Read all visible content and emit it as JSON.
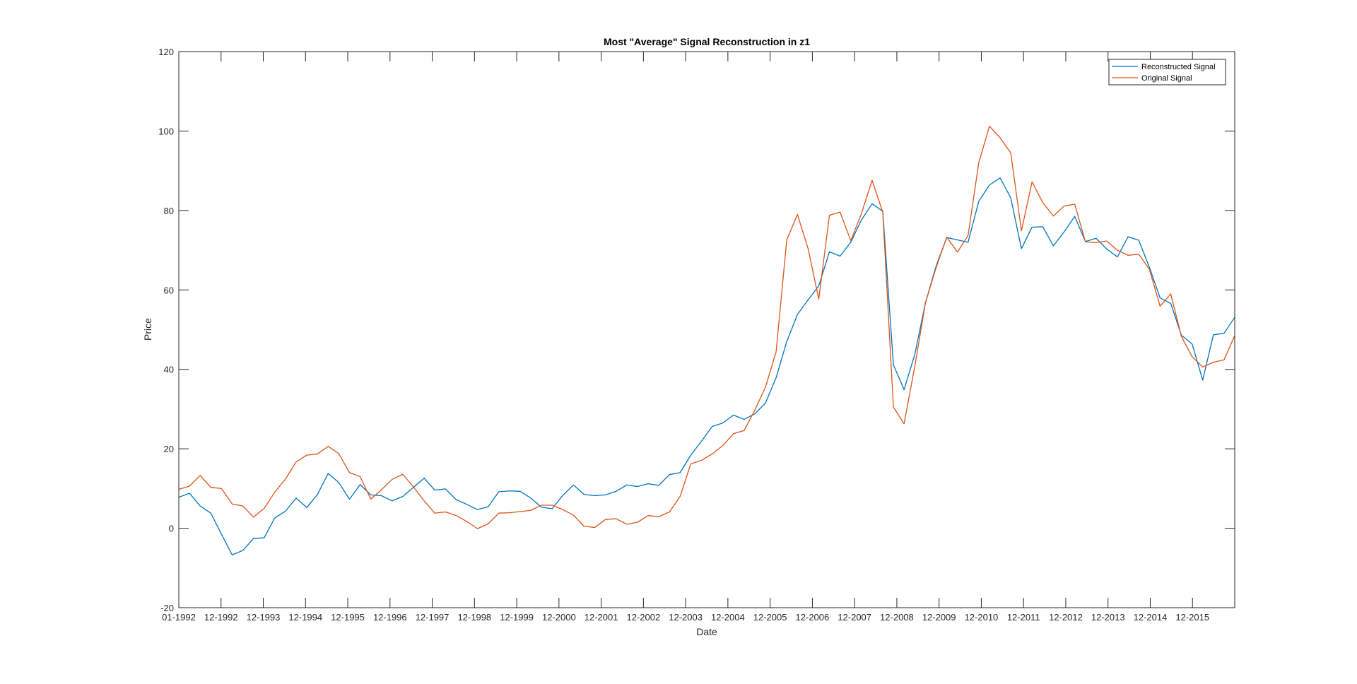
{
  "chart_data": {
    "type": "line",
    "title": "Most \"Average\" Signal Reconstruction in z1",
    "xlabel": "Date",
    "ylabel": "Price",
    "ylim": [
      -20,
      120
    ],
    "yticks": [
      -20,
      0,
      20,
      40,
      60,
      80,
      100,
      120
    ],
    "xticks": [
      "01-1992",
      "12-1992",
      "12-1993",
      "12-1994",
      "12-1995",
      "12-1996",
      "12-1997",
      "12-1998",
      "12-1999",
      "12-2000",
      "12-2001",
      "12-2002",
      "12-2003",
      "12-2004",
      "12-2005",
      "12-2006",
      "12-2007",
      "12-2008",
      "12-2009",
      "12-2010",
      "12-2011",
      "12-2012",
      "12-2013",
      "12-2014",
      "12-2015"
    ],
    "x_period": "quarterly samples from 01-1992 to 12-2016",
    "grid": false,
    "box": true,
    "legend_position": "top-right",
    "series": [
      {
        "name": "Reconstructed Signal",
        "color": "#0072BD",
        "values": [
          7.8,
          8.8,
          5.6,
          3.8,
          -1.5,
          -6.7,
          -5.6,
          -2.6,
          -2.4,
          2.6,
          4.3,
          7.6,
          5.2,
          8.5,
          13.8,
          11.5,
          7.3,
          11.0,
          8.4,
          8.2,
          6.9,
          8.0,
          10.3,
          12.6,
          9.6,
          9.9,
          7.2,
          6.0,
          4.7,
          5.4,
          9.2,
          9.4,
          9.3,
          7.6,
          5.3,
          4.9,
          8.3,
          10.9,
          8.5,
          8.2,
          8.4,
          9.3,
          10.9,
          10.5,
          11.2,
          10.8,
          13.5,
          14.0,
          18.4,
          21.9,
          25.6,
          26.5,
          28.5,
          27.4,
          28.8,
          31.5,
          37.9,
          47.0,
          53.8,
          57.5,
          61.0,
          69.6,
          68.5,
          72.0,
          77.6,
          81.7,
          79.8,
          41.1,
          34.9,
          43.7,
          56.7,
          66.0,
          73.2,
          72.6,
          72.0,
          82.3,
          86.4,
          88.2,
          83.2,
          70.4,
          75.8,
          75.9,
          71.1,
          74.6,
          78.5,
          72.2,
          73.0,
          70.3,
          68.3,
          73.4,
          72.5,
          65.7,
          58.0,
          56.6,
          48.6,
          46.4,
          37.3,
          48.7,
          49.1,
          53.1
        ]
      },
      {
        "name": "Original Signal",
        "color": "#D95319",
        "values": [
          9.8,
          10.6,
          13.3,
          10.3,
          10.0,
          6.1,
          5.6,
          2.8,
          5.0,
          9.1,
          12.4,
          16.7,
          18.4,
          18.7,
          20.6,
          18.8,
          14.0,
          13.0,
          7.3,
          9.7,
          12.3,
          13.6,
          10.4,
          6.9,
          3.8,
          4.1,
          3.2,
          1.7,
          -0.1,
          1.1,
          3.8,
          3.9,
          4.2,
          4.5,
          5.8,
          5.8,
          4.7,
          3.3,
          0.5,
          0.2,
          2.2,
          2.4,
          1.0,
          1.5,
          3.2,
          2.9,
          4.1,
          8.0,
          16.2,
          17.1,
          18.7,
          20.8,
          23.8,
          24.6,
          29.7,
          35.5,
          44.4,
          72.6,
          79.0,
          70.4,
          57.7,
          78.8,
          79.6,
          72.4,
          79.2,
          87.6,
          79.6,
          30.5,
          26.3,
          40.7,
          56.7,
          65.6,
          73.3,
          69.5,
          73.7,
          92.0,
          101.2,
          98.3,
          94.5,
          74.9,
          87.2,
          82.0,
          78.6,
          81.1,
          81.6,
          72.1,
          71.9,
          72.3,
          70.0,
          68.7,
          69.0,
          65.2,
          55.9,
          59.0,
          48.3,
          43.2,
          40.6,
          41.8,
          42.4,
          48.5
        ]
      }
    ]
  }
}
